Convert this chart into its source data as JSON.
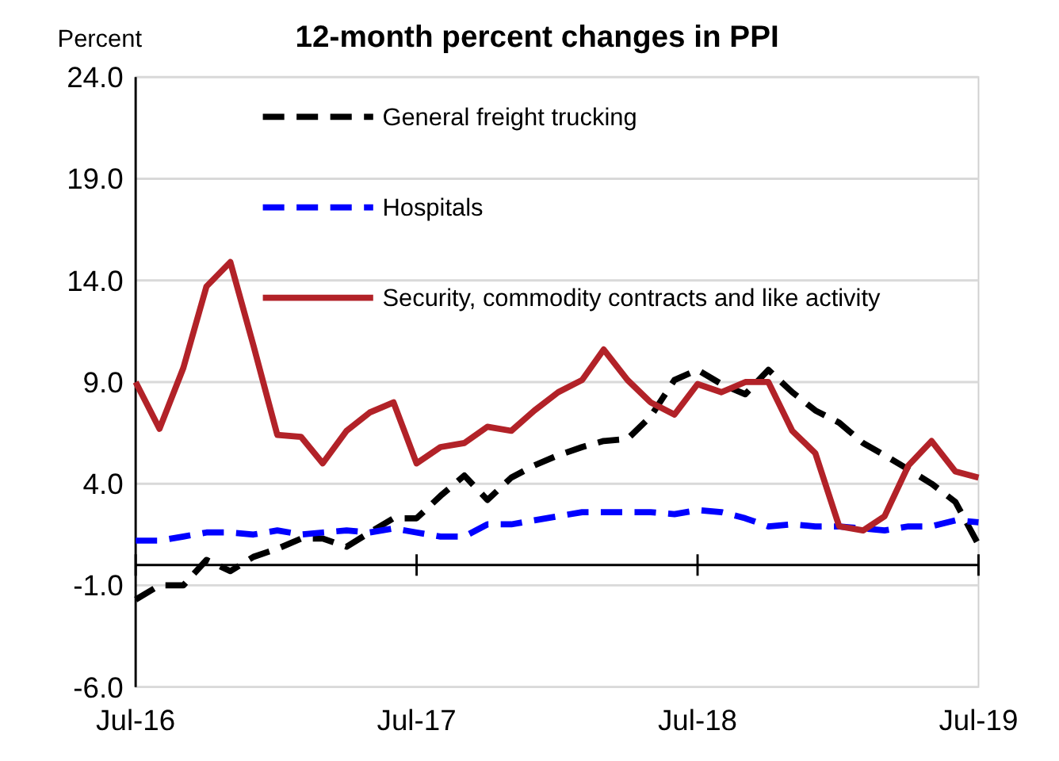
{
  "chart_data": {
    "type": "line",
    "title": "12-month percent changes in PPI",
    "ylabel": "Percent",
    "x": [
      "2016-07",
      "2016-08",
      "2016-09",
      "2016-10",
      "2016-11",
      "2016-12",
      "2017-01",
      "2017-02",
      "2017-03",
      "2017-04",
      "2017-05",
      "2017-06",
      "2017-07",
      "2017-08",
      "2017-09",
      "2017-10",
      "2017-11",
      "2017-12",
      "2018-01",
      "2018-02",
      "2018-03",
      "2018-04",
      "2018-05",
      "2018-06",
      "2018-07",
      "2018-08",
      "2018-09",
      "2018-10",
      "2018-11",
      "2018-12",
      "2019-01",
      "2019-02",
      "2019-03",
      "2019-04",
      "2019-05",
      "2019-06",
      "2019-07"
    ],
    "series": [
      {
        "name": "General freight trucking",
        "color": "#000000",
        "line_style": "dashed",
        "values": [
          -1.7,
          -1.0,
          -1.0,
          0.25,
          -0.3,
          0.4,
          0.8,
          1.3,
          1.3,
          0.9,
          1.6,
          2.3,
          2.3,
          3.4,
          4.4,
          3.2,
          4.3,
          4.9,
          5.4,
          5.8,
          6.1,
          6.2,
          7.3,
          9.1,
          9.6,
          8.9,
          8.4,
          9.6,
          8.5,
          7.6,
          7.0,
          6.0,
          5.4,
          4.7,
          4.0,
          3.1,
          1.0
        ]
      },
      {
        "name": "Hospitals",
        "color": "#0000ff",
        "line_style": "dashed",
        "values": [
          1.2,
          1.2,
          1.4,
          1.6,
          1.6,
          1.5,
          1.7,
          1.5,
          1.6,
          1.7,
          1.6,
          1.8,
          1.6,
          1.4,
          1.4,
          2.0,
          2.0,
          2.2,
          2.4,
          2.6,
          2.6,
          2.6,
          2.6,
          2.5,
          2.7,
          2.6,
          2.3,
          1.9,
          2.0,
          1.9,
          1.9,
          1.8,
          1.7,
          1.9,
          1.9,
          2.2,
          2.1
        ]
      },
      {
        "name": "Security, commodity contracts and like activity",
        "color": "#b22228",
        "line_style": "solid",
        "values": [
          9.0,
          6.7,
          9.7,
          13.7,
          14.9,
          10.8,
          6.4,
          6.3,
          5.0,
          6.6,
          7.5,
          8.0,
          5.0,
          5.8,
          6.0,
          6.8,
          6.6,
          7.6,
          8.5,
          9.1,
          10.6,
          9.1,
          8.0,
          7.4,
          8.9,
          8.5,
          9.0,
          9.0,
          6.6,
          5.5,
          1.9,
          1.7,
          2.4,
          4.9,
          6.1,
          4.6,
          4.3
        ]
      }
    ],
    "xlim": [
      "2016-07",
      "2019-07"
    ],
    "xticks": [
      {
        "value": "2016-07",
        "label": "Jul-16"
      },
      {
        "value": "2017-07",
        "label": "Jul-17"
      },
      {
        "value": "2018-07",
        "label": "Jul-18"
      },
      {
        "value": "2019-07",
        "label": "Jul-19"
      }
    ],
    "ylim": [
      -6,
      24
    ],
    "yticks": [
      {
        "value": -6,
        "label": "-6.0"
      },
      {
        "value": -1,
        "label": "-1.0"
      },
      {
        "value": 4,
        "label": "4.0"
      },
      {
        "value": 9,
        "label": "9.0"
      },
      {
        "value": 14,
        "label": "14.0"
      },
      {
        "value": 19,
        "label": "19.0"
      },
      {
        "value": 24,
        "label": "24.0"
      }
    ],
    "grid": "y",
    "legend": "top",
    "marker": "none"
  }
}
